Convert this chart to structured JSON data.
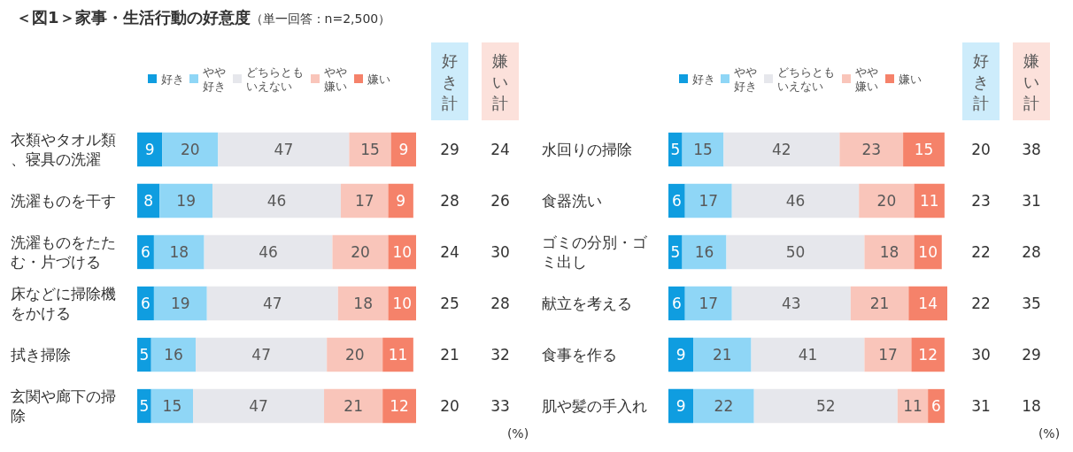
{
  "chart_data": [
    {
      "type": "bar",
      "orientation": "horizontal",
      "stacked": true,
      "title": "＜図1＞家事・生活行動の好意度",
      "subtitle": "（単一回答：n=2,500）",
      "categories": [
        "衣類やタオル類、寝具の洗濯",
        "洗濯ものを干す",
        "洗濯ものをたたむ・片づける",
        "床などに掃除機をかける",
        "拭き掃除",
        "玄関や廊下の掃除"
      ],
      "series": [
        {
          "name": "好き",
          "color": "#0f9de0",
          "values": [
            9,
            8,
            6,
            6,
            5,
            5
          ]
        },
        {
          "name": "やや好き",
          "color": "#8fd6f6",
          "values": [
            20,
            19,
            18,
            19,
            16,
            15
          ]
        },
        {
          "name": "どちらともいえない",
          "color": "#e6e7ec",
          "values": [
            47,
            46,
            46,
            47,
            47,
            47
          ]
        },
        {
          "name": "やや嫌い",
          "color": "#f9c5ba",
          "values": [
            15,
            17,
            20,
            18,
            20,
            21
          ]
        },
        {
          "name": "嫌い",
          "color": "#f5826a",
          "values": [
            9,
            9,
            10,
            10,
            11,
            12
          ]
        }
      ],
      "xlim": [
        0,
        100
      ],
      "tick_labels": "y",
      "data_labels": true,
      "legend": "top",
      "annotations": [
        "好き計",
        "嫌い計",
        "(%)",
        "29",
        "24",
        "28",
        "26",
        "24",
        "30",
        "25",
        "28",
        "21",
        "32",
        "20",
        "33"
      ]
    },
    {
      "type": "bar",
      "orientation": "horizontal",
      "stacked": true,
      "categories": [
        "水回りの掃除",
        "食器洗い",
        "ゴミの分別・ゴミ出し",
        "献立を考える",
        "食事を作る",
        "肌や髪の手入れ"
      ],
      "series": [
        {
          "name": "好き",
          "color": "#0f9de0",
          "values": [
            5,
            6,
            5,
            6,
            9,
            9
          ]
        },
        {
          "name": "やや好き",
          "color": "#8fd6f6",
          "values": [
            15,
            17,
            16,
            17,
            21,
            22
          ]
        },
        {
          "name": "どちらともいえない",
          "color": "#e6e7ec",
          "values": [
            42,
            46,
            50,
            43,
            41,
            52
          ]
        },
        {
          "name": "やや嫌い",
          "color": "#f9c5ba",
          "values": [
            23,
            20,
            18,
            21,
            17,
            11
          ]
        },
        {
          "name": "嫌い",
          "color": "#f5826a",
          "values": [
            15,
            11,
            10,
            14,
            12,
            6
          ]
        }
      ],
      "xlim": [
        0,
        101
      ],
      "tick_labels": "y",
      "data_labels": true,
      "legend": "top",
      "annotations": [
        "好き計",
        "嫌い計",
        "(%)",
        "20",
        "38",
        "23",
        "31",
        "22",
        "28",
        "22",
        "35",
        "30",
        "29",
        "31",
        "18"
      ]
    }
  ]
}
